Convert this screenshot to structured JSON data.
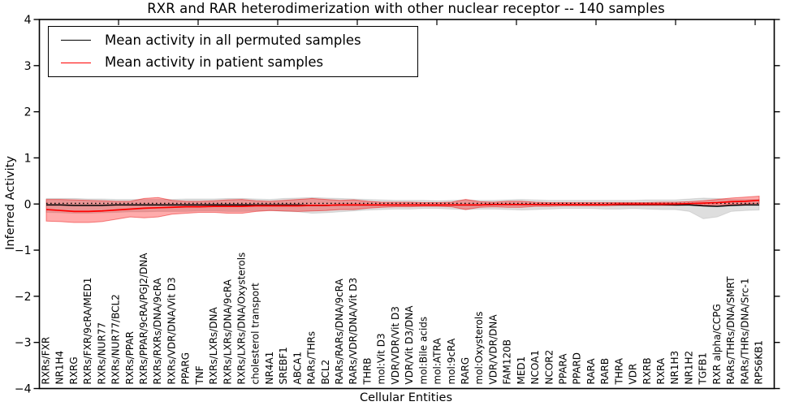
{
  "title": "RXR and RAR heterodimerization with other nuclear receptor -- 140 samples",
  "axes": {
    "ylabel": "Inferred Activity",
    "xlabel": "Cellular Entities",
    "yticks": [
      4,
      3,
      2,
      1,
      0,
      -1,
      -2,
      -3,
      -4
    ],
    "ytick_labels": [
      "4",
      "3",
      "2",
      "1",
      "0",
      "−1",
      "−2",
      "−3",
      "−4"
    ]
  },
  "legend": {
    "entries": [
      {
        "label": "Mean activity in all permuted samples",
        "color": "#000000"
      },
      {
        "label": "Mean activity in patient samples",
        "color": "#ff0000"
      }
    ]
  },
  "chart_data": {
    "type": "line",
    "title": "RXR and RAR heterodimerization with other nuclear receptor -- 140 samples",
    "xlabel": "Cellular Entities",
    "ylabel": "Inferred Activity",
    "ylim": [
      -4,
      4
    ],
    "grid": false,
    "legend_position": "upper left",
    "categories": [
      "RXRs/FXR",
      "NR1H4",
      "RXRG",
      "RXRs/FXR/9cRA/MED1",
      "RXRs/NUR77",
      "RXRs/NUR77/BCL2",
      "RXRs/PPAR",
      "RXRs/PPAR/9cRA/PGJ2/DNA",
      "RXRs/RXRs/DNA/9cRA",
      "RXRs/VDR/DNA/Vit D3",
      "PPARG",
      "TNF",
      "RXRs/LXRs/DNA",
      "RXRs/LXRs/DNA/9cRA",
      "RXRs/LXRs/DNA/Oxysterols",
      "cholesterol transport",
      "NR4A1",
      "SREBF1",
      "ABCA1",
      "RARs/THRs",
      "BCL2",
      "RARs/RARs/DNA/9cRA",
      "RARs/VDR/DNA/Vit D3",
      "THRB",
      "mol:Vit D3",
      "VDR/VDR/Vit D3",
      "VDR/Vit D3/DNA",
      "mol:Bile acids",
      "mol:ATRA",
      "mol:9cRA",
      "RARG",
      "mol:Oxysterols",
      "VDR/VDR/DNA",
      "FAM120B",
      "MED1",
      "NCOA1",
      "NCOR2",
      "PPARA",
      "PPARD",
      "RARA",
      "RARB",
      "THRA",
      "VDR",
      "RXRB",
      "RXRA",
      "NR1H3",
      "NR1H2",
      "TGFB1",
      "RXR alpha/CCPG",
      "RARs/THRs/DNA/SMRT",
      "RARs/THRs/DNA/Src-1",
      "RPS6KB1"
    ],
    "series": [
      {
        "name": "Mean activity in all permuted samples",
        "color": "#000000",
        "band_fill": "rgba(0,0,0,0.13)",
        "band_edge": "rgba(0,0,0,0.10)",
        "values": [
          -0.02,
          -0.02,
          -0.03,
          -0.03,
          -0.03,
          -0.02,
          -0.02,
          -0.02,
          -0.02,
          -0.02,
          -0.02,
          -0.02,
          -0.02,
          -0.02,
          -0.02,
          -0.02,
          -0.02,
          -0.02,
          -0.02,
          -0.03,
          -0.03,
          -0.02,
          -0.02,
          -0.02,
          -0.02,
          -0.02,
          -0.02,
          -0.02,
          -0.02,
          -0.02,
          -0.02,
          -0.02,
          -0.01,
          -0.01,
          -0.01,
          -0.01,
          -0.01,
          -0.01,
          -0.01,
          -0.01,
          -0.01,
          -0.01,
          -0.01,
          -0.01,
          -0.01,
          -0.02,
          -0.02,
          -0.04,
          -0.05,
          -0.03,
          -0.02,
          -0.02
        ],
        "band_upper": [
          0.12,
          0.12,
          0.12,
          0.11,
          0.11,
          0.1,
          0.1,
          0.1,
          0.1,
          0.1,
          0.11,
          0.11,
          0.11,
          0.12,
          0.12,
          0.11,
          0.1,
          0.12,
          0.13,
          0.14,
          0.13,
          0.12,
          0.11,
          0.1,
          0.09,
          0.08,
          0.08,
          0.08,
          0.07,
          0.08,
          0.09,
          0.08,
          0.08,
          0.09,
          0.1,
          0.09,
          0.08,
          0.08,
          0.08,
          0.08,
          0.08,
          0.08,
          0.08,
          0.09,
          0.09,
          0.09,
          0.11,
          0.13,
          0.12,
          0.1,
          0.1,
          0.1
        ],
        "band_lower": [
          -0.18,
          -0.19,
          -0.2,
          -0.2,
          -0.19,
          -0.18,
          -0.17,
          -0.17,
          -0.16,
          -0.16,
          -0.16,
          -0.15,
          -0.15,
          -0.16,
          -0.16,
          -0.15,
          -0.14,
          -0.16,
          -0.17,
          -0.2,
          -0.19,
          -0.17,
          -0.15,
          -0.13,
          -0.12,
          -0.11,
          -0.11,
          -0.1,
          -0.1,
          -0.11,
          -0.12,
          -0.11,
          -0.11,
          -0.12,
          -0.13,
          -0.12,
          -0.11,
          -0.1,
          -0.1,
          -0.1,
          -0.11,
          -0.11,
          -0.1,
          -0.11,
          -0.12,
          -0.12,
          -0.16,
          -0.32,
          -0.28,
          -0.16,
          -0.14,
          -0.13
        ]
      },
      {
        "name": "Mean activity in patient samples",
        "color": "#ff0000",
        "band_fill": "rgba(255,0,0,0.33)",
        "band_edge": "rgba(230,0,0,0.45)",
        "values": [
          -0.12,
          -0.14,
          -0.16,
          -0.16,
          -0.15,
          -0.13,
          -0.11,
          -0.09,
          -0.08,
          -0.07,
          -0.06,
          -0.06,
          -0.05,
          -0.05,
          -0.05,
          -0.04,
          -0.04,
          -0.04,
          -0.04,
          -0.03,
          -0.03,
          -0.02,
          -0.02,
          -0.02,
          -0.02,
          -0.02,
          -0.02,
          -0.02,
          -0.02,
          -0.02,
          -0.02,
          -0.02,
          -0.01,
          -0.01,
          -0.01,
          -0.01,
          -0.01,
          -0.01,
          -0.01,
          -0.01,
          -0.01,
          0.0,
          0.0,
          0.0,
          0.0,
          0.0,
          0.01,
          0.02,
          0.03,
          0.05,
          0.06,
          0.08
        ],
        "band_upper": [
          0.1,
          0.1,
          0.09,
          0.08,
          0.07,
          0.06,
          0.06,
          0.12,
          0.14,
          0.08,
          0.06,
          0.06,
          0.07,
          0.09,
          0.1,
          0.07,
          0.06,
          0.08,
          0.1,
          0.12,
          0.1,
          0.08,
          0.09,
          0.06,
          0.04,
          0.04,
          0.04,
          0.03,
          0.03,
          0.04,
          0.1,
          0.05,
          0.04,
          0.06,
          0.06,
          0.04,
          0.03,
          0.03,
          0.03,
          0.03,
          0.03,
          0.03,
          0.03,
          0.03,
          0.04,
          0.04,
          0.05,
          0.07,
          0.1,
          0.13,
          0.15,
          0.17
        ],
        "band_lower": [
          -0.37,
          -0.38,
          -0.4,
          -0.4,
          -0.38,
          -0.33,
          -0.28,
          -0.3,
          -0.28,
          -0.22,
          -0.2,
          -0.18,
          -0.18,
          -0.2,
          -0.2,
          -0.16,
          -0.14,
          -0.15,
          -0.16,
          -0.15,
          -0.14,
          -0.12,
          -0.12,
          -0.09,
          -0.07,
          -0.06,
          -0.06,
          -0.05,
          -0.05,
          -0.06,
          -0.12,
          -0.07,
          -0.06,
          -0.07,
          -0.07,
          -0.05,
          -0.05,
          -0.04,
          -0.04,
          -0.04,
          -0.04,
          -0.03,
          -0.03,
          -0.03,
          -0.03,
          -0.03,
          -0.02,
          -0.02,
          -0.02,
          -0.01,
          0.0,
          0.01
        ]
      }
    ],
    "zero_line": {
      "style": "dotted",
      "color": "#000000",
      "y": 0
    }
  }
}
